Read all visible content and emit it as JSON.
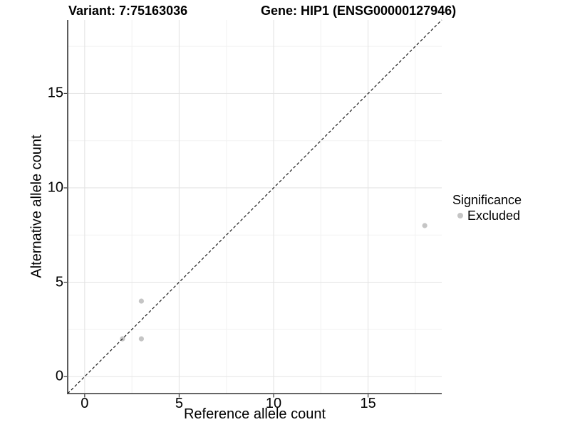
{
  "chart_data": {
    "type": "scatter",
    "variant_title": "Variant: 7:75163036",
    "gene_title": "Gene: HIP1 (ENSG00000127946)",
    "xlabel": "Reference allele count",
    "ylabel": "Alternative allele count",
    "xlim": [
      -0.9,
      18.9
    ],
    "ylim": [
      -0.9,
      18.9
    ],
    "x_ticks": [
      0,
      5,
      10,
      15
    ],
    "y_ticks": [
      0,
      5,
      10,
      15
    ],
    "x_minor_ticks": [
      2.5,
      7.5,
      12.5,
      17.5
    ],
    "y_minor_ticks": [
      2.5,
      7.5,
      12.5,
      17.5
    ],
    "grid": "major-and-minor",
    "identity_line": {
      "slope": 1,
      "intercept": 0,
      "style": "dashed",
      "color": "#1a1a1a"
    },
    "series": [
      {
        "name": "Excluded",
        "color": "#c5c5c5",
        "points": [
          {
            "x": 2,
            "y": 2
          },
          {
            "x": 3,
            "y": 2
          },
          {
            "x": 3,
            "y": 4
          },
          {
            "x": 18,
            "y": 8
          }
        ]
      }
    ],
    "legend": {
      "title": "Significance",
      "position": "right",
      "items": [
        {
          "label": "Excluded",
          "color": "#c5c5c5"
        }
      ]
    }
  },
  "colors": {
    "background": "#ffffff",
    "grid_major": "#e4e4e4",
    "grid_minor": "#f2f2f2",
    "axis_line": "#333333",
    "tick_mark": "#333333",
    "text": "#000000"
  }
}
